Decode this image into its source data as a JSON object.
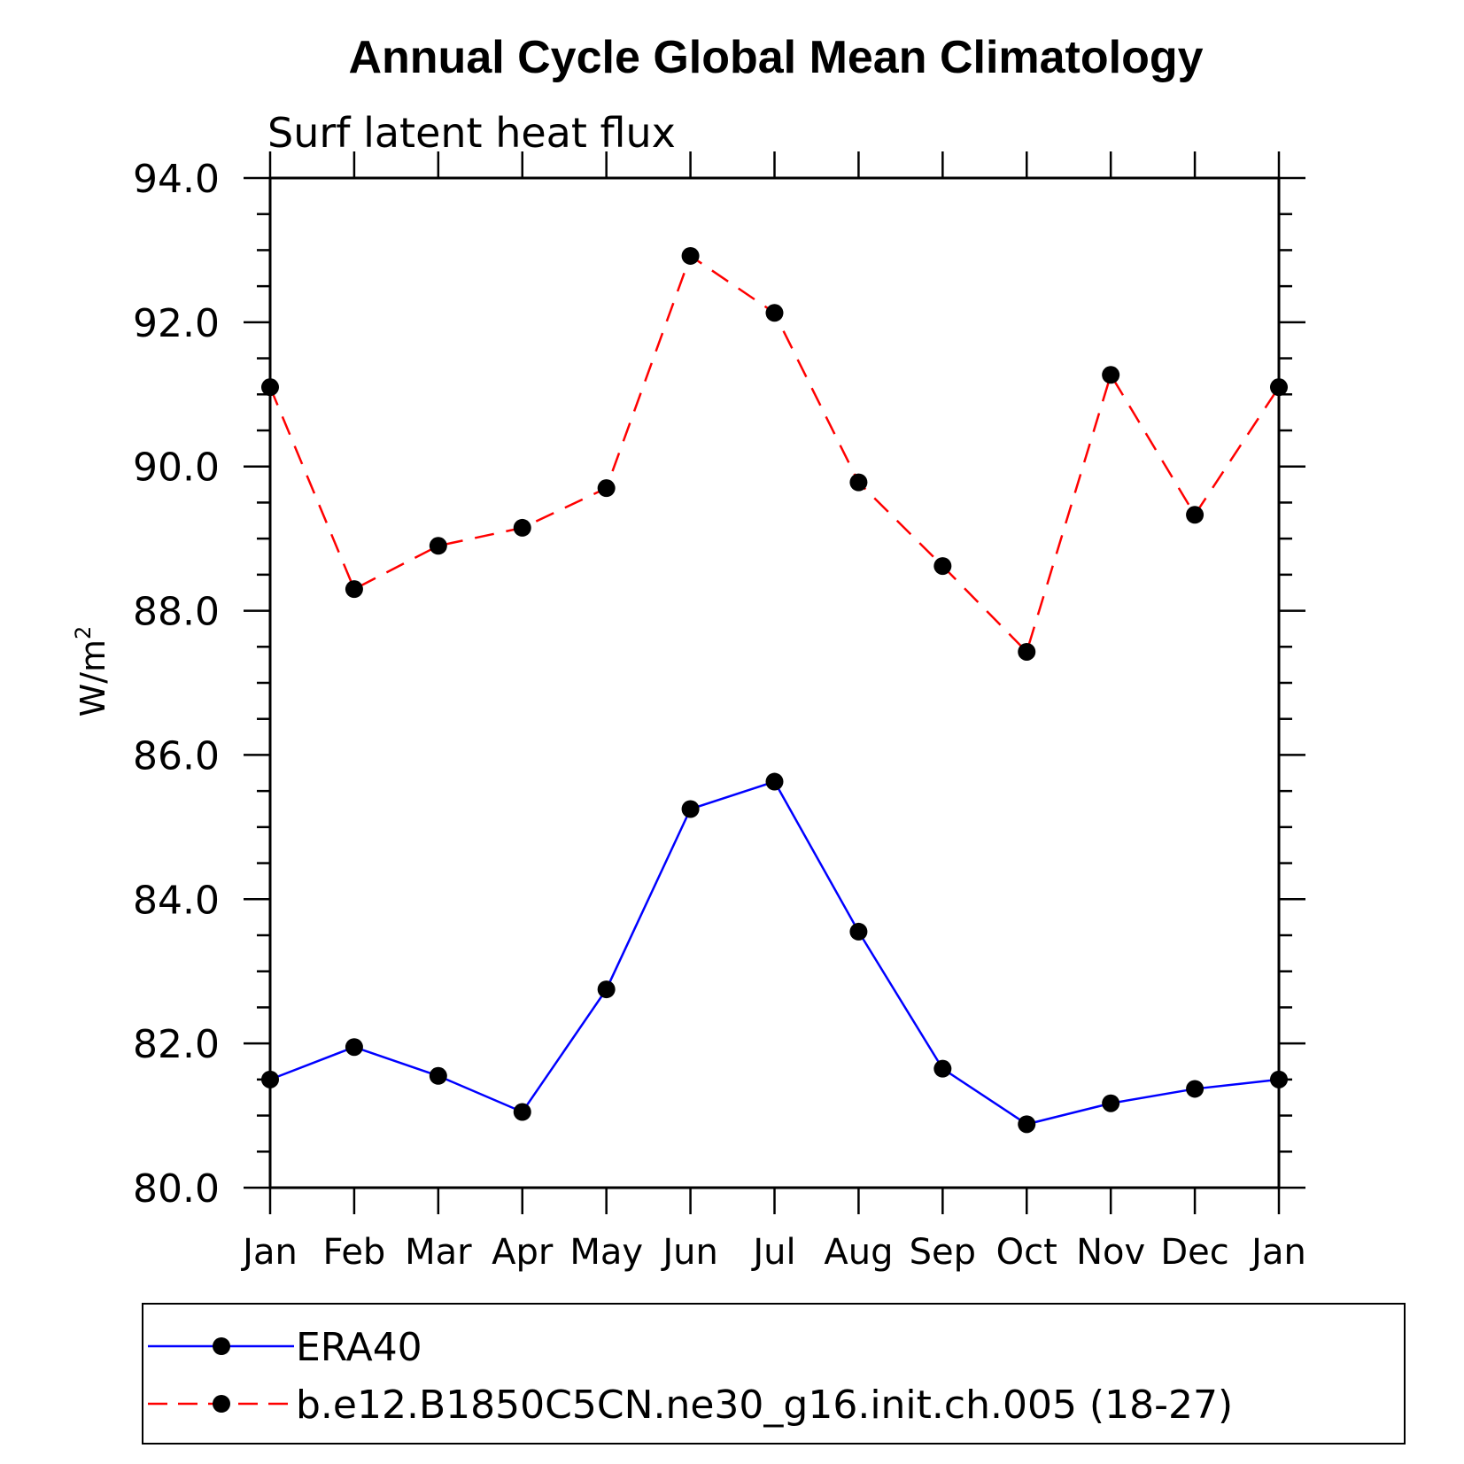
{
  "chart_data": {
    "type": "line",
    "title": "Annual Cycle Global Mean Climatology",
    "subtitle": "Surf latent heat flux",
    "xlabel": "",
    "ylabel": "W/m",
    "ylabel_superscript": "2",
    "categories": [
      "Jan",
      "Feb",
      "Mar",
      "Apr",
      "May",
      "Jun",
      "Jul",
      "Aug",
      "Sep",
      "Oct",
      "Nov",
      "Dec",
      "Jan"
    ],
    "ylim": [
      80.0,
      94.0
    ],
    "yticks": [
      "80.0",
      "82.0",
      "84.0",
      "86.0",
      "88.0",
      "90.0",
      "92.0",
      "94.0"
    ],
    "grid": false,
    "legend_position": "bottom",
    "series": [
      {
        "name": "ERA40",
        "color": "#0000ff",
        "style": "solid",
        "marker": "circle",
        "values": [
          81.5,
          81.95,
          81.55,
          81.05,
          82.75,
          85.25,
          85.63,
          83.55,
          81.65,
          80.88,
          81.17,
          81.37,
          81.5
        ]
      },
      {
        "name": "b.e12.B1850C5CN.ne30_g16.init.ch.005 (18-27)",
        "color": "#ff0000",
        "style": "dashed",
        "marker": "circle",
        "values": [
          91.1,
          88.3,
          88.9,
          89.15,
          89.7,
          92.92,
          92.13,
          89.78,
          88.62,
          87.43,
          91.27,
          89.33,
          91.1
        ]
      }
    ]
  }
}
